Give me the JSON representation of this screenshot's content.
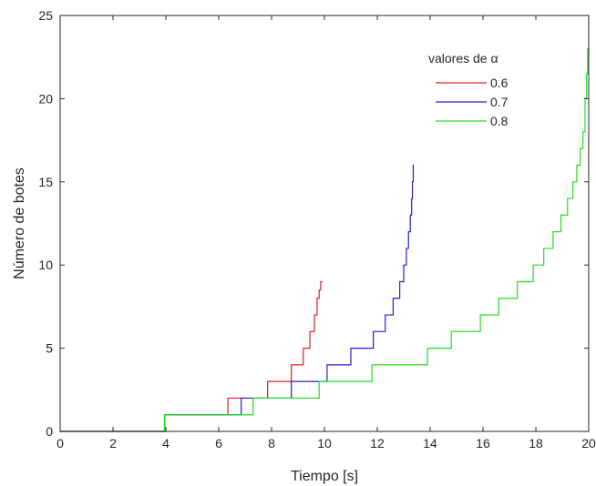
{
  "chart_data": {
    "type": "line",
    "title": "",
    "xlabel": "Tiempo [s]",
    "ylabel": "Número de botes",
    "xlim": [
      0,
      20
    ],
    "ylim": [
      0,
      25
    ],
    "xticks": [
      "0",
      "2",
      "4",
      "6",
      "8",
      "10",
      "12",
      "14",
      "16",
      "18",
      "20"
    ],
    "yticks": [
      "0",
      "5",
      "10",
      "15",
      "20",
      "25"
    ],
    "grid": false,
    "legend": {
      "title": "valores de α",
      "placement": "top-right"
    },
    "series": [
      {
        "name": "0.6",
        "color": "#d62020",
        "x": [
          0,
          3.95,
          3.95,
          6.35,
          6.35,
          7.85,
          7.85,
          8.75,
          8.75,
          9.2,
          9.2,
          9.45,
          9.45,
          9.62,
          9.62,
          9.72,
          9.72,
          9.8,
          9.8,
          9.86,
          9.86,
          9.92
        ],
        "y": [
          0,
          0,
          1,
          1,
          2,
          2,
          3,
          3,
          4,
          4,
          5,
          5,
          6,
          6,
          7,
          7,
          8,
          8,
          8.5,
          8.5,
          9,
          9
        ]
      },
      {
        "name": "0.7",
        "color": "#2020d0",
        "x": [
          0,
          3.95,
          3.95,
          6.85,
          6.85,
          8.75,
          8.75,
          10.1,
          10.1,
          11.0,
          11.0,
          11.85,
          11.85,
          12.3,
          12.3,
          12.6,
          12.6,
          12.85,
          12.85,
          13.0,
          13.0,
          13.1,
          13.1,
          13.18,
          13.18,
          13.25,
          13.25,
          13.3,
          13.3,
          13.33,
          13.33,
          13.36,
          13.36,
          13.38
        ],
        "y": [
          0,
          0,
          1,
          1,
          2,
          2,
          3,
          3,
          4,
          4,
          5,
          5,
          6,
          6,
          7,
          7,
          8,
          8,
          9,
          9,
          10,
          10,
          11,
          11,
          12,
          12,
          13,
          13,
          14,
          14,
          15,
          15,
          16,
          16
        ]
      },
      {
        "name": "0.8",
        "color": "#20dd20",
        "x": [
          0,
          3.95,
          3.95,
          7.3,
          7.3,
          9.8,
          9.8,
          11.8,
          11.8,
          13.9,
          13.9,
          14.8,
          14.8,
          15.9,
          15.9,
          16.6,
          16.6,
          17.3,
          17.3,
          17.9,
          17.9,
          18.3,
          18.3,
          18.65,
          18.65,
          18.95,
          18.95,
          19.2,
          19.2,
          19.4,
          19.4,
          19.55,
          19.55,
          19.68,
          19.68,
          19.78,
          19.78,
          19.86,
          19.86,
          19.92,
          19.92,
          19.96,
          19.96,
          19.98
        ],
        "y": [
          0,
          0,
          1,
          1,
          2,
          2,
          3,
          3,
          4,
          4,
          5,
          5,
          6,
          6,
          7,
          7,
          8,
          8,
          9,
          9,
          10,
          10,
          11,
          11,
          12,
          12,
          13,
          13,
          14,
          14,
          15,
          15,
          16,
          16,
          17,
          17,
          18,
          18,
          20,
          20,
          21.5,
          21.5,
          23,
          23
        ]
      }
    ]
  }
}
